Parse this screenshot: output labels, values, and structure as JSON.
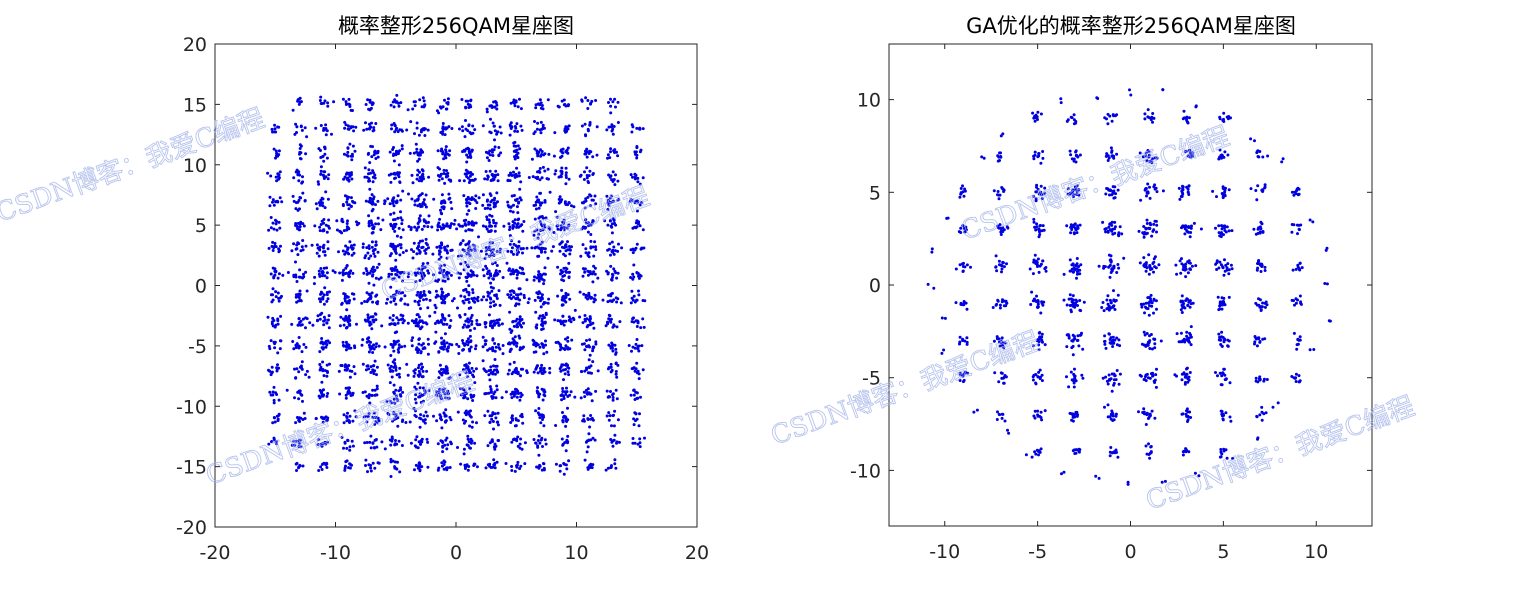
{
  "figure": {
    "watermark_text": "CSDN博客：我爱C编程",
    "point_color": "#0000e0",
    "axis_color": "#262626"
  },
  "chart_data": [
    {
      "type": "scatter",
      "title": "概率整形256QAM星座图",
      "xlabel": "",
      "ylabel": "",
      "xlim": [
        -20,
        20
      ],
      "ylim": [
        -20,
        20
      ],
      "xticks": [
        -20,
        -10,
        0,
        10,
        20
      ],
      "yticks": [
        -20,
        -15,
        -10,
        -5,
        0,
        5,
        10,
        15,
        20
      ],
      "grid": false,
      "constellation": {
        "levels": [
          -15,
          -13,
          -11,
          -9,
          -7,
          -5,
          -3,
          -1,
          1,
          3,
          5,
          7,
          9,
          11,
          13,
          15
        ],
        "corner_cut_radius": 20.5,
        "description_points": "16x16 square lattice of noisy symbol clusters with outer corners removed; cluster size largest near center"
      }
    },
    {
      "type": "scatter",
      "title": "GA优化的概率整形256QAM星座图",
      "xlabel": "",
      "ylabel": "",
      "xlim": [
        -13,
        13
      ],
      "ylim": [
        -13,
        13
      ],
      "xticks": [
        -10,
        -5,
        0,
        5,
        10
      ],
      "yticks": [
        -10,
        -5,
        0,
        5,
        10
      ],
      "grid": false,
      "constellation": {
        "levels": [
          -10,
          -9,
          -7,
          -5,
          -3,
          -1,
          1,
          3,
          5,
          7,
          9,
          10
        ],
        "core_levels": [
          -9,
          -7,
          -5,
          -3,
          -1,
          1,
          3,
          5,
          7,
          9
        ],
        "boundary_radius": 11,
        "description_points": "Approximately circular constellation of symbol clusters within radius ~11; dense central clusters, sparse outer ring"
      }
    }
  ]
}
